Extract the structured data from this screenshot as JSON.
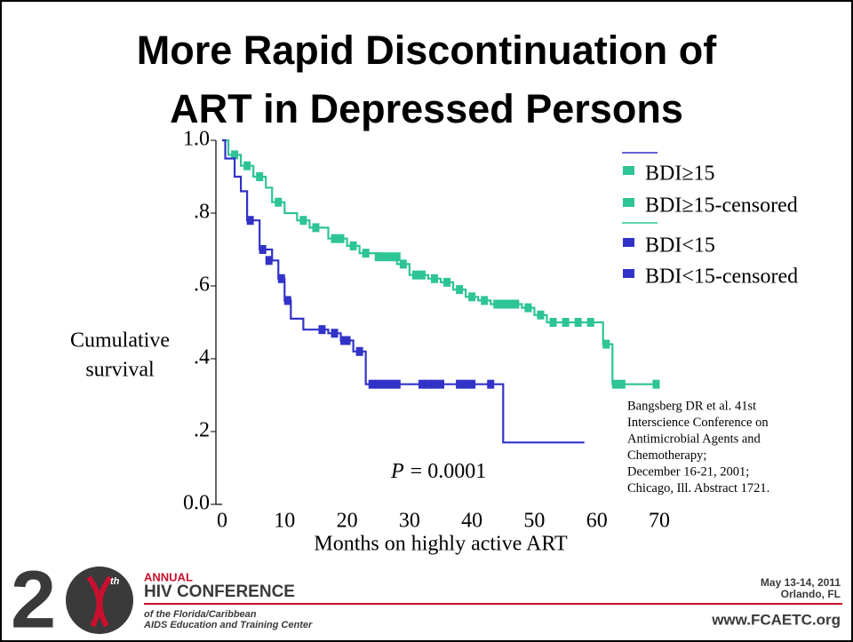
{
  "chart_data": {
    "type": "line",
    "step": true,
    "title": [
      "More Rapid Discontinuation of",
      "ART in Depressed Persons"
    ],
    "ylabel": [
      "Cumulative",
      "survival"
    ],
    "xlabel": "Months on highly active ART",
    "xlim": [
      0,
      70
    ],
    "ylim": [
      0,
      1
    ],
    "xticks": [
      0,
      10,
      20,
      30,
      40,
      50,
      60,
      70
    ],
    "yticks": [
      {
        "value": 0,
        "label": "0.0"
      },
      {
        "value": 0.2,
        "label": ".2"
      },
      {
        "value": 0.4,
        "label": ".4"
      },
      {
        "value": 0.6,
        "label": ".6"
      },
      {
        "value": 0.8,
        "label": ".8"
      },
      {
        "value": 1,
        "label": "1.0"
      }
    ],
    "legend": "upper right",
    "series": [
      {
        "name": "BDI≥15",
        "color": "#2ec495",
        "kind": "step",
        "x": [
          0,
          1,
          3,
          5,
          7,
          8,
          10,
          12,
          14,
          17,
          20,
          22,
          25,
          28,
          30,
          33,
          35,
          37,
          39,
          41,
          43,
          48,
          50,
          52,
          61,
          62.5,
          70
        ],
        "values": [
          1,
          0.96,
          0.93,
          0.9,
          0.87,
          0.83,
          0.8,
          0.78,
          0.76,
          0.73,
          0.71,
          0.69,
          0.68,
          0.66,
          0.63,
          0.62,
          0.61,
          0.59,
          0.57,
          0.56,
          0.55,
          0.54,
          0.52,
          0.5,
          0.44,
          0.33,
          0.33
        ]
      },
      {
        "name": "BDI≥15-censored",
        "color": "#2ec495",
        "kind": "censored",
        "x": [
          2,
          4,
          6,
          9,
          13,
          15,
          18,
          19,
          21,
          23,
          25,
          26,
          27,
          28,
          29,
          31,
          32,
          34,
          36,
          38,
          40,
          42,
          44,
          45,
          46,
          47,
          49,
          51,
          53,
          55,
          57,
          59,
          61.5,
          63,
          64,
          69.5
        ],
        "values": [
          0.96,
          0.93,
          0.9,
          0.83,
          0.78,
          0.76,
          0.73,
          0.73,
          0.71,
          0.69,
          0.68,
          0.68,
          0.68,
          0.68,
          0.66,
          0.63,
          0.63,
          0.62,
          0.61,
          0.59,
          0.57,
          0.56,
          0.55,
          0.55,
          0.55,
          0.55,
          0.54,
          0.52,
          0.5,
          0.5,
          0.5,
          0.5,
          0.44,
          0.33,
          0.33,
          0.33
        ]
      },
      {
        "name": "BDI<15",
        "color": "#3232c8",
        "kind": "step",
        "x": [
          0,
          0.5,
          2,
          3,
          4,
          6,
          8,
          9,
          10,
          11,
          13,
          17,
          19,
          21,
          23,
          45,
          58
        ],
        "values": [
          1,
          0.95,
          0.9,
          0.86,
          0.78,
          0.7,
          0.67,
          0.62,
          0.56,
          0.51,
          0.48,
          0.47,
          0.45,
          0.42,
          0.33,
          0.17,
          0.17
        ]
      },
      {
        "name": "BDI<15-censored",
        "color": "#3232c8",
        "kind": "censored",
        "x": [
          4.5,
          6.5,
          7.5,
          9.5,
          10.5,
          16,
          18,
          19.5,
          20,
          22,
          24,
          25,
          26,
          27,
          28,
          32,
          33,
          34,
          35,
          38,
          39,
          40,
          43
        ],
        "values": [
          0.78,
          0.7,
          0.67,
          0.62,
          0.56,
          0.48,
          0.47,
          0.45,
          0.45,
          0.42,
          0.33,
          0.33,
          0.33,
          0.33,
          0.33,
          0.33,
          0.33,
          0.33,
          0.33,
          0.33,
          0.33,
          0.33,
          0.33
        ]
      }
    ],
    "annotations": {
      "p_symbol": "P",
      "p_value": "= 0.0001"
    },
    "citation": [
      "Bangsberg DR et al. 41st",
      "Interscience Conference on",
      "Antimicrobial Agents and",
      "Chemotherapy;",
      "December 16-21, 2001;",
      "Chicago, Ill. Abstract 1721."
    ]
  },
  "footer": {
    "digit": "2",
    "ordinal": "th",
    "annual": "ANNUAL",
    "conference": "HIV CONFERENCE",
    "org_line1": "of the Florida/Caribbean",
    "org_line2": "AIDS Education and Training Center",
    "date": "May 13-14, 2011",
    "place": "Orlando, FL",
    "url": "www.FCAETC.org"
  }
}
